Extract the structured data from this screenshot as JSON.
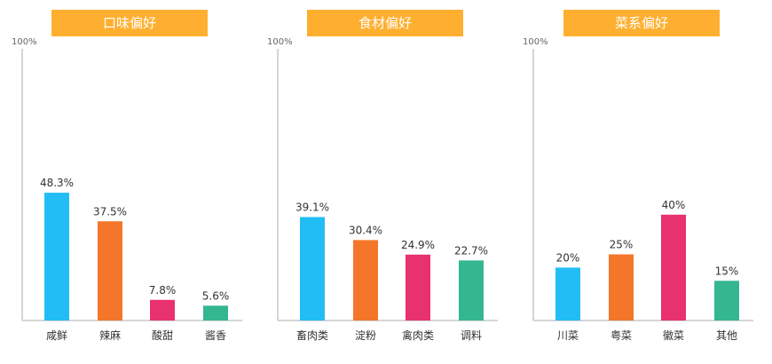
{
  "colors": {
    "header_bg": "#FFAF2F",
    "header_text": "#ffffff",
    "axis": "#c8c8c8",
    "series": [
      "#22BDF5",
      "#F4762B",
      "#E8316F",
      "#34B691"
    ]
  },
  "chart_data": [
    {
      "type": "bar",
      "title": "口味偏好",
      "max_label": "100%",
      "ylim": [
        0,
        100
      ],
      "categories": [
        "咸鲜",
        "辣麻",
        "酸甜",
        "酱香"
      ],
      "values": [
        48.3,
        37.5,
        7.8,
        5.6
      ],
      "value_labels": [
        "48.3%",
        "37.5%",
        "7.8%",
        "5.6%"
      ]
    },
    {
      "type": "bar",
      "title": "食材偏好",
      "max_label": "100%",
      "ylim": [
        0,
        100
      ],
      "categories": [
        "畜肉类",
        "淀粉",
        "禽肉类",
        "调料"
      ],
      "values": [
        39.1,
        30.4,
        24.9,
        22.7
      ],
      "value_labels": [
        "39.1%",
        "30.4%",
        "24.9%",
        "22.7%"
      ]
    },
    {
      "type": "bar",
      "title": "菜系偏好",
      "max_label": "100%",
      "ylim": [
        0,
        100
      ],
      "categories": [
        "川菜",
        "粤菜",
        "徽菜",
        "其他"
      ],
      "values": [
        20,
        25,
        40,
        15
      ],
      "value_labels": [
        "20%",
        "25%",
        "40%",
        "15%"
      ]
    }
  ]
}
